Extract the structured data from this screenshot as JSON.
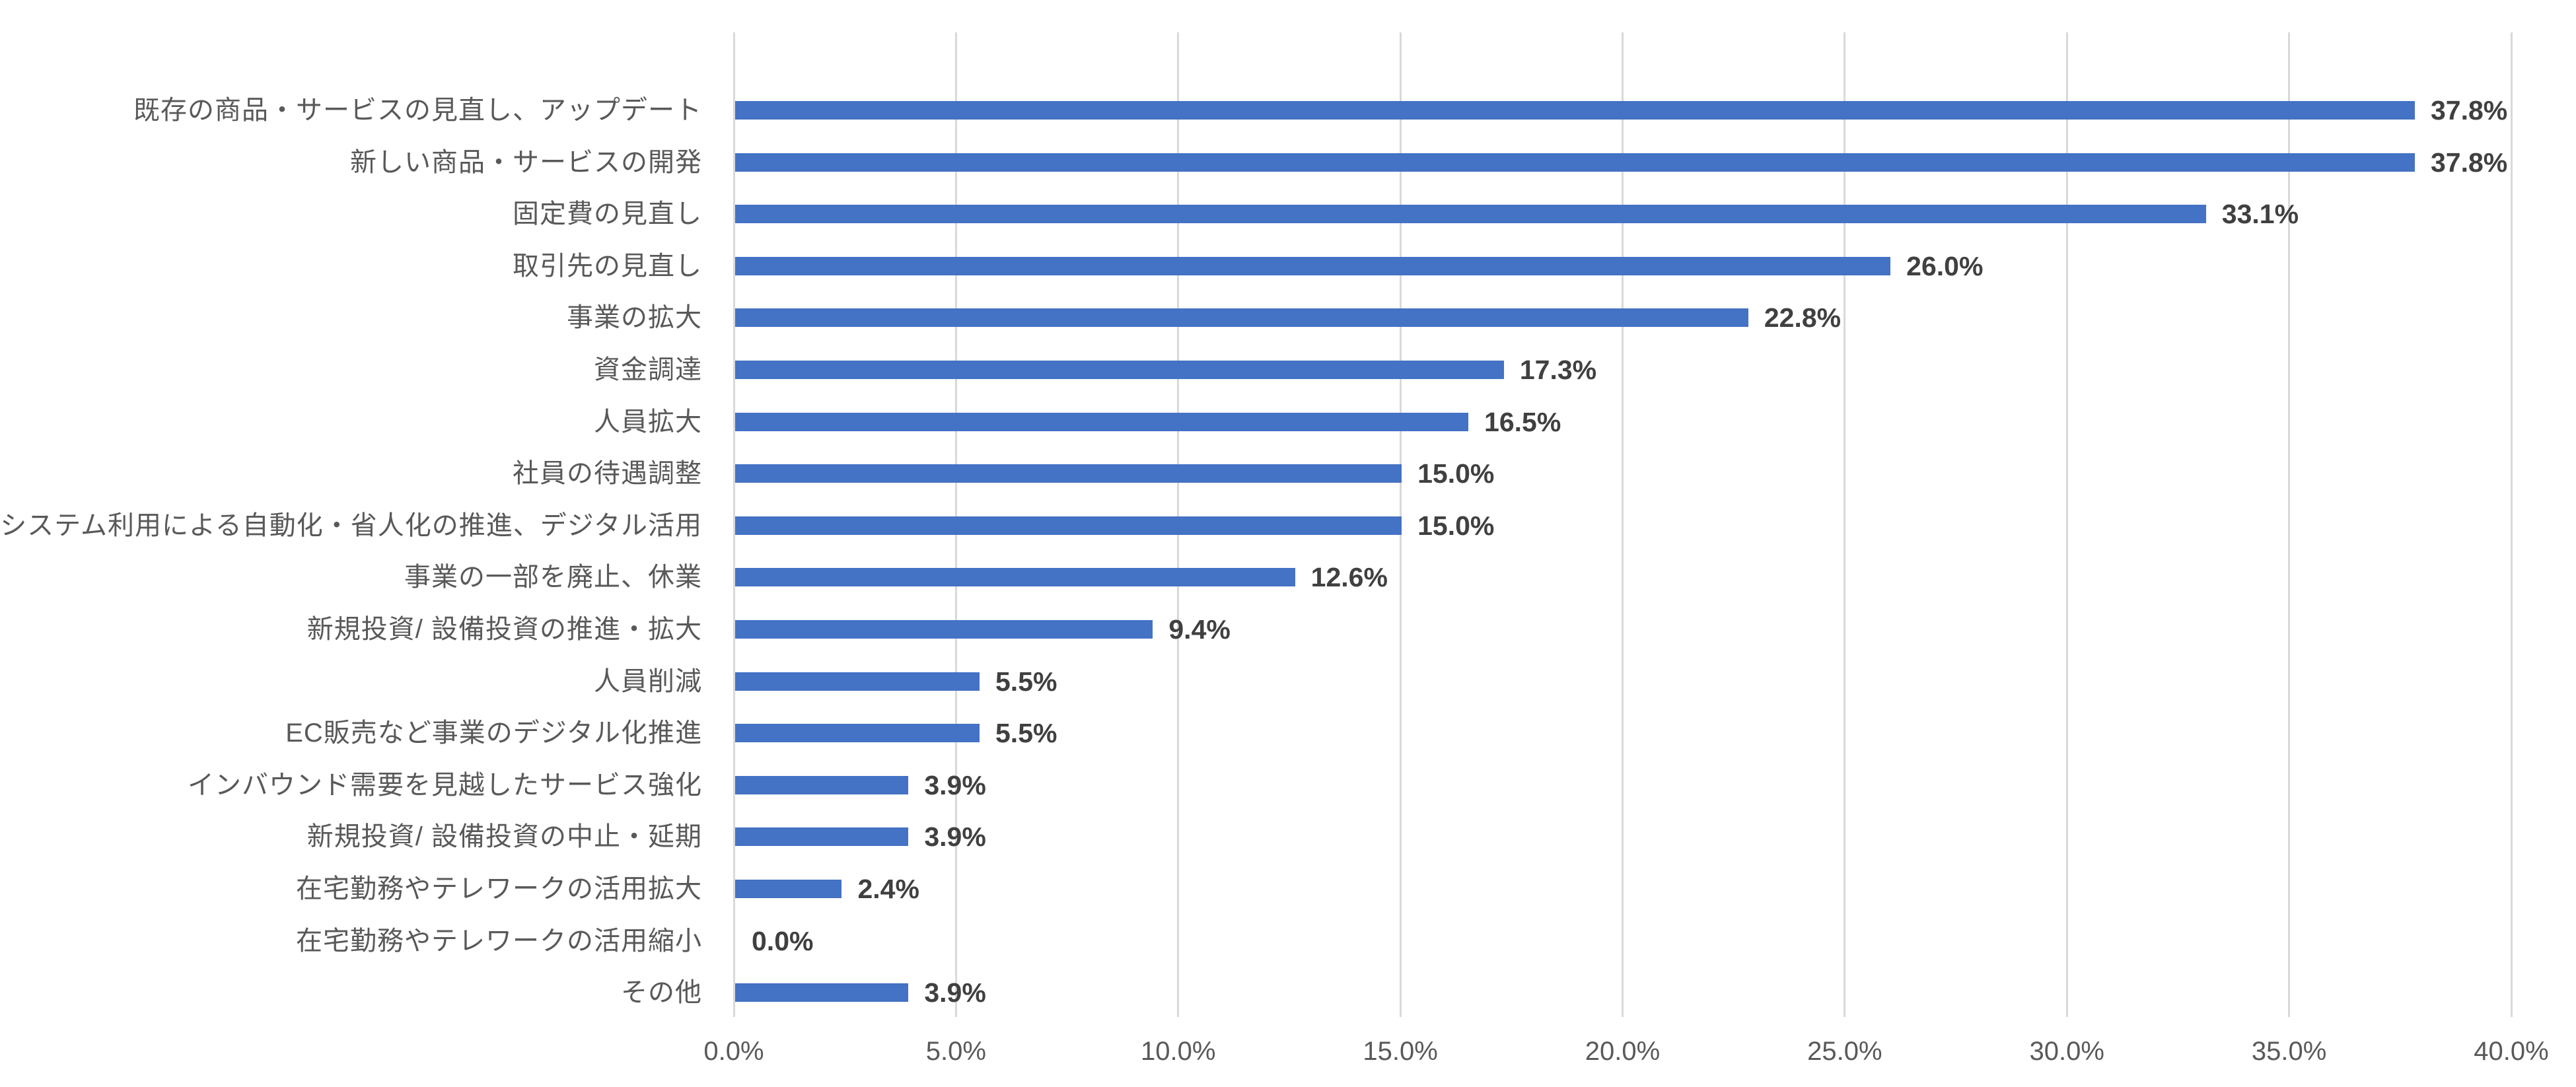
{
  "chart_data": {
    "type": "bar",
    "orientation": "horizontal",
    "title": "",
    "xlabel": "",
    "ylabel": "",
    "grid": "vertical",
    "legend": "none",
    "categories": [
      "既存の商品・サービスの見直し、アップデート",
      "新しい商品・サービスの開発",
      "固定費の見直し",
      "取引先の見直し",
      "事業の拡大",
      "資金調達",
      "人員拡大",
      "社員の待遇調整",
      "システム利用による自動化・省人化の推進、デジタル活用",
      "事業の一部を廃止、休業",
      "新規投資/ 設備投資の推進・拡大",
      "人員削減",
      "EC販売など事業のデジタル化推進",
      "インバウンド需要を見越したサービス強化",
      "新規投資/ 設備投資の中止・延期",
      "在宅勤務やテレワークの活用拡大",
      "在宅勤務やテレワークの活用縮小",
      "その他"
    ],
    "values": [
      37.8,
      37.8,
      33.1,
      26.0,
      22.8,
      17.3,
      16.5,
      15.0,
      15.0,
      12.6,
      9.4,
      5.5,
      5.5,
      3.9,
      3.9,
      2.4,
      0.0,
      3.9
    ],
    "value_labels": [
      "37.8%",
      "37.8%",
      "33.1%",
      "26.0%",
      "22.8%",
      "17.3%",
      "16.5%",
      "15.0%",
      "15.0%",
      "12.6%",
      "9.4%",
      "5.5%",
      "5.5%",
      "3.9%",
      "3.9%",
      "2.4%",
      "0.0%",
      "3.9%"
    ],
    "x_axis": {
      "min": 0,
      "max": 40,
      "tick_step": 5,
      "tick_labels": [
        "0.0%",
        "5.0%",
        "10.0%",
        "15.0%",
        "20.0%",
        "25.0%",
        "30.0%",
        "35.0%",
        "40.0%"
      ]
    },
    "colors": {
      "bar": "#4472C4",
      "gridline": "#D9D9D9",
      "category_label": "#595959",
      "value_label": "#404040",
      "tick_label": "#595959",
      "background": "#FFFFFF"
    }
  }
}
